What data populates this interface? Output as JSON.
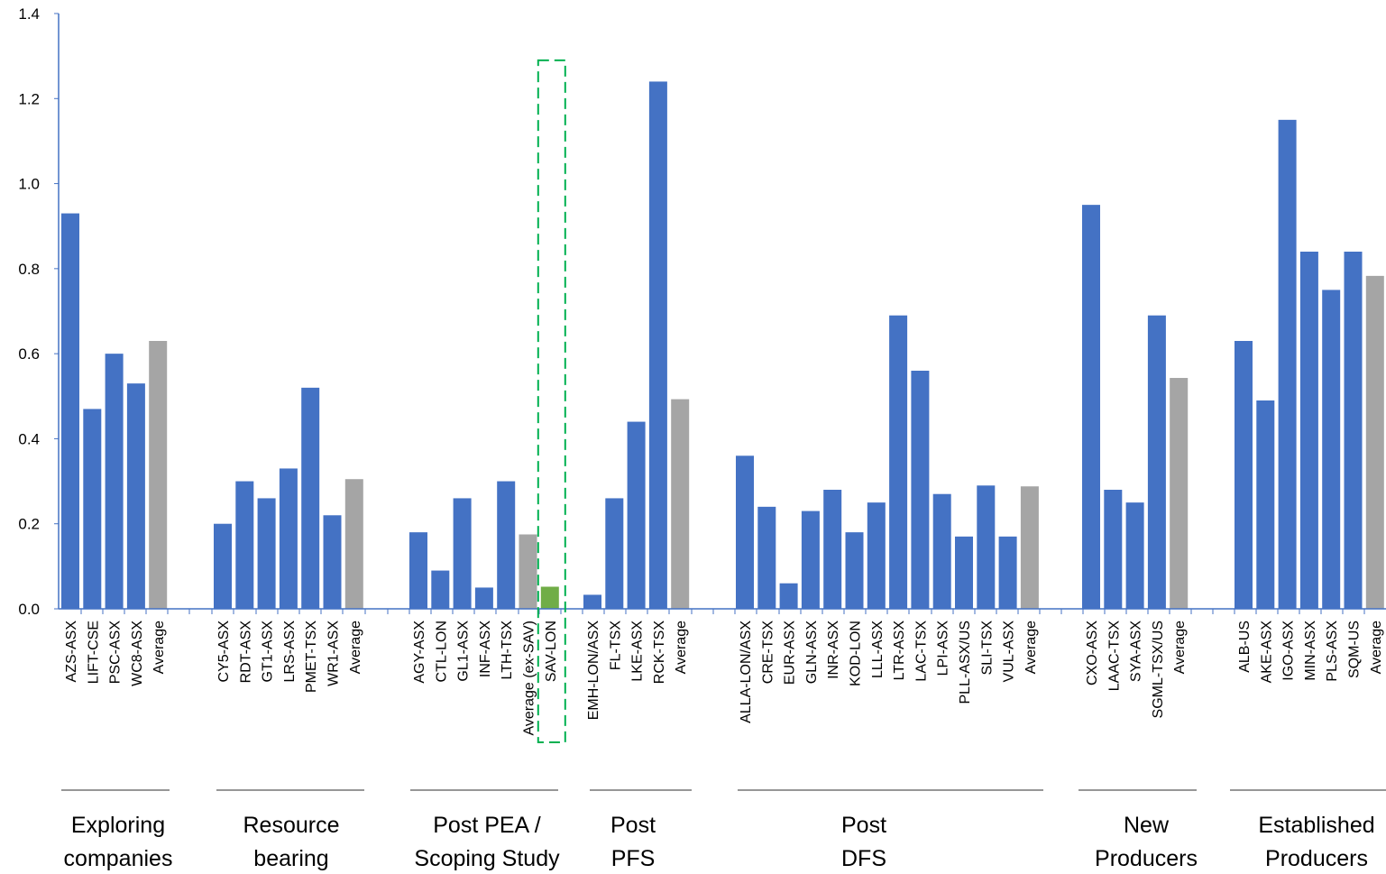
{
  "chart_data": {
    "type": "bar",
    "title": "",
    "xlabel": "",
    "ylabel": "",
    "ylim": [
      0,
      1.4
    ],
    "yticks": [
      "0.0",
      "0.2",
      "0.4",
      "0.6",
      "0.8",
      "1.0",
      "1.2",
      "1.4"
    ],
    "grid": false,
    "legend": "none",
    "colors": {
      "company": "#4472C4",
      "average": "#A5A5A5",
      "highlight": "#70AD47",
      "highlight_box": "#00B050",
      "axis": "#4472C4",
      "group_line": "#595959"
    },
    "groups": [
      {
        "label_lines": [
          "Exploring",
          "companies"
        ],
        "bars": [
          {
            "label": "AZS-ASX",
            "value": 0.93,
            "kind": "company"
          },
          {
            "label": "LIFT-CSE",
            "value": 0.47,
            "kind": "company"
          },
          {
            "label": "PSC-ASX",
            "value": 0.6,
            "kind": "company"
          },
          {
            "label": "WC8-ASX",
            "value": 0.53,
            "kind": "company"
          },
          {
            "label": "Average",
            "value": 0.63,
            "kind": "average"
          }
        ]
      },
      {
        "label_lines": [
          "Resource",
          "bearing"
        ],
        "bars": [
          {
            "label": "CY5-ASX",
            "value": 0.2,
            "kind": "company"
          },
          {
            "label": "RDT-ASX",
            "value": 0.3,
            "kind": "company"
          },
          {
            "label": "GT1-ASX",
            "value": 0.26,
            "kind": "company"
          },
          {
            "label": "LRS-ASX",
            "value": 0.33,
            "kind": "company"
          },
          {
            "label": "PMET-TSX",
            "value": 0.52,
            "kind": "company"
          },
          {
            "label": "WR1-ASX",
            "value": 0.22,
            "kind": "company"
          },
          {
            "label": "Average",
            "value": 0.305,
            "kind": "average"
          }
        ]
      },
      {
        "label_lines": [
          "Post PEA /",
          "Scoping Study"
        ],
        "bars": [
          {
            "label": "AGY-ASX",
            "value": 0.18,
            "kind": "company"
          },
          {
            "label": "CTL-LON",
            "value": 0.09,
            "kind": "company"
          },
          {
            "label": "GL1-ASX",
            "value": 0.26,
            "kind": "company"
          },
          {
            "label": "INF-ASX",
            "value": 0.05,
            "kind": "company"
          },
          {
            "label": "LTH-TSX",
            "value": 0.3,
            "kind": "company"
          },
          {
            "label": "Average (ex-SAV)",
            "value": 0.175,
            "kind": "average"
          },
          {
            "label": "SAV-LON",
            "value": 0.052,
            "kind": "highlight"
          }
        ]
      },
      {
        "label_lines": [
          "Post",
          "PFS"
        ],
        "bars": [
          {
            "label": "EMH-LON/ASX",
            "value": 0.033,
            "kind": "company"
          },
          {
            "label": "FL-TSX",
            "value": 0.26,
            "kind": "company"
          },
          {
            "label": "LKE-ASX",
            "value": 0.44,
            "kind": "company"
          },
          {
            "label": "RCK-TSX",
            "value": 1.24,
            "kind": "company"
          },
          {
            "label": "Average",
            "value": 0.493,
            "kind": "average"
          }
        ]
      },
      {
        "label_lines": [
          "Post",
          "DFS"
        ],
        "bars": [
          {
            "label": "ALLA-LON/ASX",
            "value": 0.36,
            "kind": "company"
          },
          {
            "label": "CRE-TSX",
            "value": 0.24,
            "kind": "company"
          },
          {
            "label": "EUR-ASX",
            "value": 0.06,
            "kind": "company"
          },
          {
            "label": "GLN-ASX",
            "value": 0.23,
            "kind": "company"
          },
          {
            "label": "INR-ASX",
            "value": 0.28,
            "kind": "company"
          },
          {
            "label": "KOD-LON",
            "value": 0.18,
            "kind": "company"
          },
          {
            "label": "LLL-ASX",
            "value": 0.25,
            "kind": "company"
          },
          {
            "label": "LTR-ASX",
            "value": 0.69,
            "kind": "company"
          },
          {
            "label": "LAC-TSX",
            "value": 0.56,
            "kind": "company"
          },
          {
            "label": "LPI-ASX",
            "value": 0.27,
            "kind": "company"
          },
          {
            "label": "PLL-ASX/US",
            "value": 0.17,
            "kind": "company"
          },
          {
            "label": "SLI-TSX",
            "value": 0.29,
            "kind": "company"
          },
          {
            "label": "VUL-ASX",
            "value": 0.17,
            "kind": "company"
          },
          {
            "label": "Average",
            "value": 0.288,
            "kind": "average"
          }
        ]
      },
      {
        "label_lines": [
          "New",
          "Producers"
        ],
        "bars": [
          {
            "label": "CXO-ASX",
            "value": 0.95,
            "kind": "company"
          },
          {
            "label": "LAAC-TSX",
            "value": 0.28,
            "kind": "company"
          },
          {
            "label": "SYA-ASX",
            "value": 0.25,
            "kind": "company"
          },
          {
            "label": "SGML-TSX/US",
            "value": 0.69,
            "kind": "company"
          },
          {
            "label": "Average",
            "value": 0.543,
            "kind": "average"
          }
        ]
      },
      {
        "label_lines": [
          "Established",
          "Producers"
        ],
        "bars": [
          {
            "label": "ALB-US",
            "value": 0.63,
            "kind": "company"
          },
          {
            "label": "AKE-ASX",
            "value": 0.49,
            "kind": "company"
          },
          {
            "label": "IGO-ASX",
            "value": 1.15,
            "kind": "company"
          },
          {
            "label": "MIN-ASX",
            "value": 0.84,
            "kind": "company"
          },
          {
            "label": "PLS-ASX",
            "value": 0.75,
            "kind": "company"
          },
          {
            "label": "SQM-US",
            "value": 0.84,
            "kind": "company"
          },
          {
            "label": "Average",
            "value": 0.783,
            "kind": "average"
          }
        ]
      }
    ]
  }
}
